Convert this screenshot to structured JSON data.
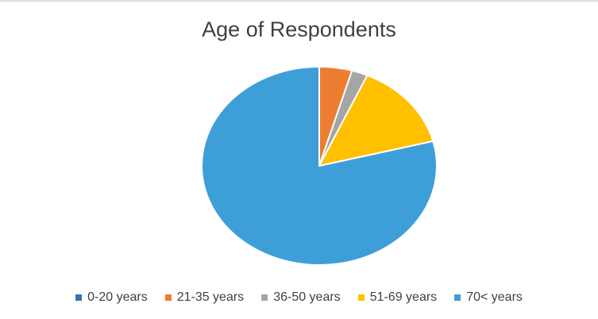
{
  "chart_data": {
    "type": "pie",
    "title": "Age of Respondents",
    "categories": [
      "0-20 years",
      "21-35 years",
      "36-50 years",
      "51-69 years",
      "70< years"
    ],
    "values": [
      0,
      4.5,
      2.2,
      14.3,
      79
    ],
    "colors": [
      "#2E75B6",
      "#ED7D31",
      "#A5A5A5",
      "#FFC000",
      "#3E9FD8"
    ],
    "start_angle_deg": 0,
    "direction": "clockwise",
    "legend_position": "bottom"
  }
}
